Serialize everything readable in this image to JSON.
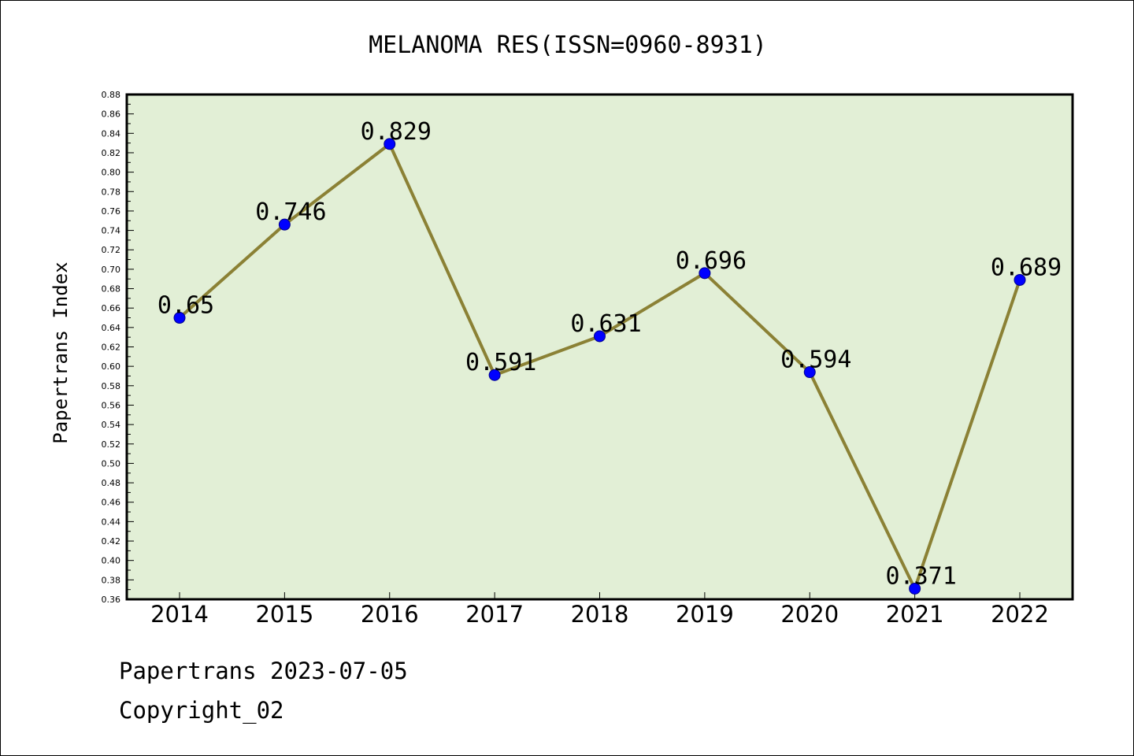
{
  "chart_data": {
    "type": "line",
    "title": "MELANOMA RES(ISSN=0960-8931)",
    "xlabel": "",
    "ylabel": "Papertrans Index",
    "categories": [
      "2014",
      "2015",
      "2016",
      "2017",
      "2018",
      "2019",
      "2020",
      "2021",
      "2022"
    ],
    "series": [
      {
        "values": [
          0.65,
          0.746,
          0.829,
          0.591,
          0.631,
          0.696,
          0.594,
          0.371,
          0.689
        ],
        "labels": [
          "0.65",
          "0.746",
          "0.829",
          "0.591",
          "0.631",
          "0.696",
          "0.594",
          "0.371",
          "0.689"
        ]
      }
    ],
    "ylim": [
      0.36,
      0.88
    ],
    "ytick_step": 0.02,
    "grid": false,
    "legend": "none",
    "colors": {
      "plot_background": "#e2efd6",
      "line": "#8b8135",
      "marker": "#0000ff"
    }
  },
  "footer": {
    "source": "Papertrans 2023-07-05",
    "copyright": "Copyright_02"
  }
}
